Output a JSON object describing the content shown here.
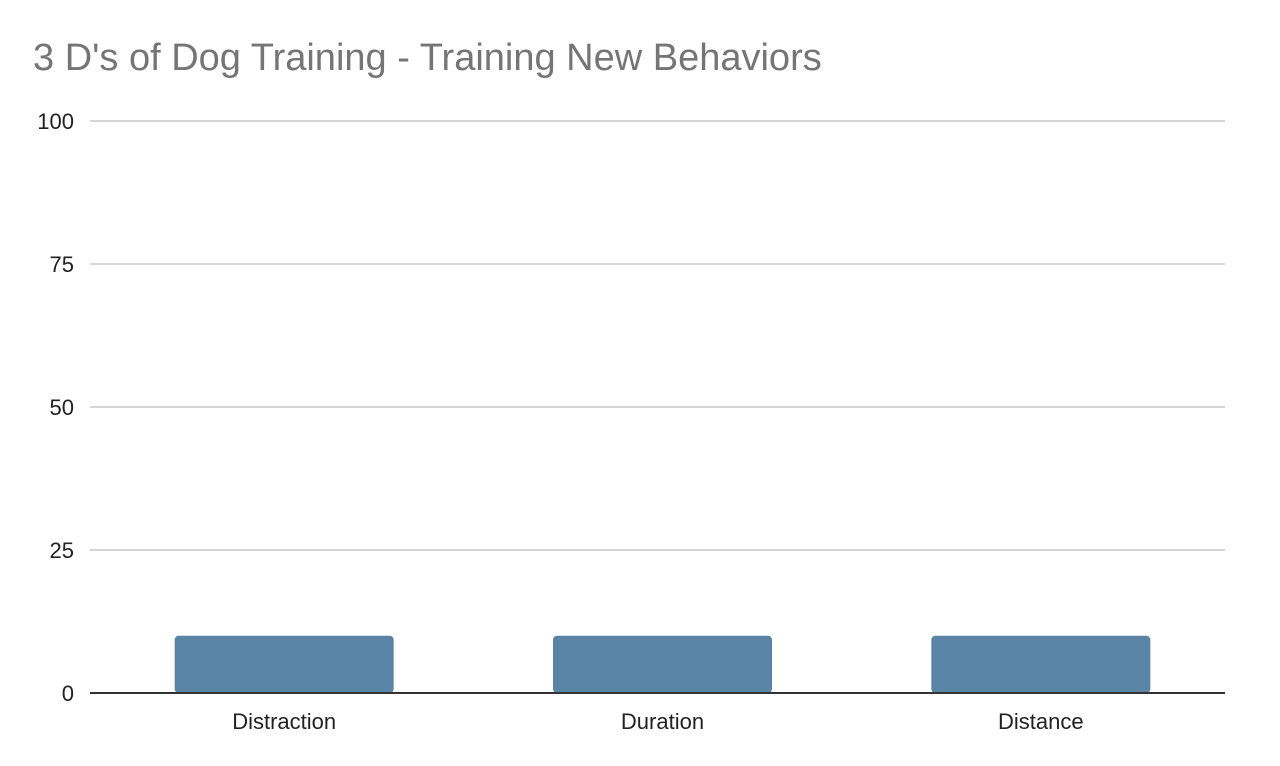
{
  "chart_data": {
    "type": "bar",
    "title": "3 D's of Dog Training - Training New Behaviors",
    "categories": [
      "Distraction",
      "Duration",
      "Distance"
    ],
    "values": [
      10,
      10,
      10
    ],
    "xlabel": "",
    "ylabel": "",
    "ylim": [
      0,
      100
    ],
    "yticks": [
      "0",
      "25",
      "50",
      "75",
      "100"
    ],
    "grid": true,
    "legend": "none",
    "bar_color": "#5a84a6",
    "title_color": "#757575"
  }
}
